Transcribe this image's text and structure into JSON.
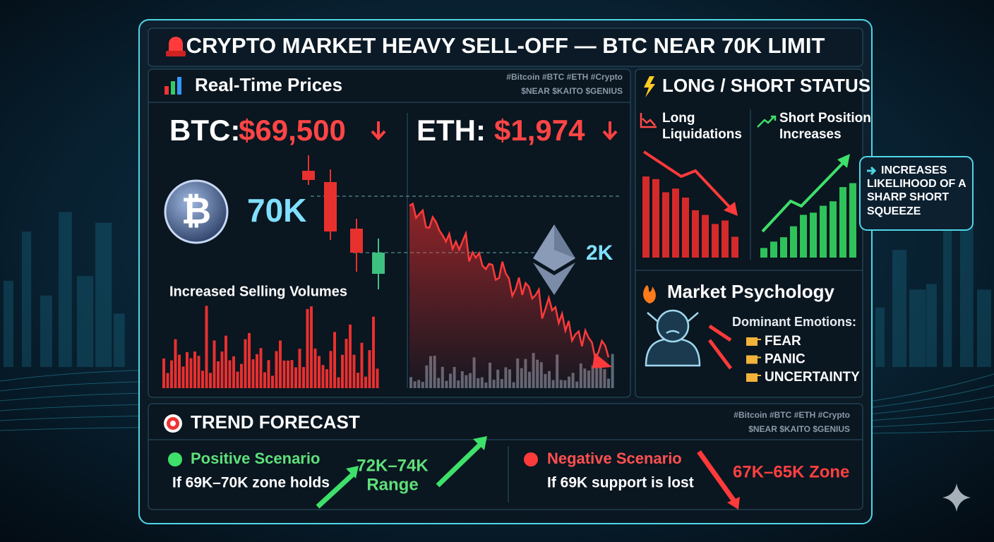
{
  "header": {
    "title": "CRYPTO MARKET HEAVY SELL-OFF — BTC NEAR 70K LIMIT"
  },
  "prices": {
    "heading": "Real-Time Prices",
    "tags": [
      "#Bitcoin #BTC #ETH #Crypto",
      "$NEAR $KAITO $GENIUS"
    ],
    "btc": {
      "label": "BTC:",
      "price": "$69,500",
      "level": "70K"
    },
    "eth": {
      "label": "ETH:",
      "price": "$1,974",
      "level": "2K"
    },
    "volume_caption": "Increased Selling Volumes"
  },
  "long_short": {
    "heading": "LONG / SHORT STATUS",
    "long": "Long Liquidations",
    "short": "Short Position Increases",
    "callout": "INCREASES LIKELIHOOD OF A SHARP SHORT SQUEEZE"
  },
  "psychology": {
    "heading": "Market Psychology",
    "emotions_label": "Dominant Emotions:",
    "emotions": [
      "FEAR",
      "PANIC",
      "UNCERTAINTY"
    ]
  },
  "forecast": {
    "heading": "TREND FORECAST",
    "tags": [
      "#Bitcoin #BTC #ETH #Crypto",
      "$NEAR $KAITO $GENIUS"
    ],
    "positive": {
      "title": "Positive Scenario",
      "condition": "If 69K–70K zone holds",
      "target": [
        "72K–74K",
        "Range"
      ]
    },
    "negative": {
      "title": "Negative Scenario",
      "condition": "If 69K support is lost",
      "target": "67K–65K Zone"
    }
  }
}
